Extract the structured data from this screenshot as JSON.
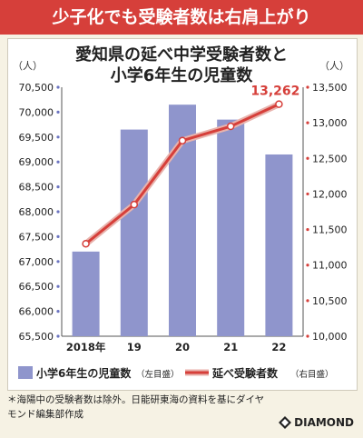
{
  "banner": "少子化でも受験者数は右肩上がり",
  "title_line1": "愛知県の延べ中学受験者数と",
  "title_line2": "小学6年生の児童数",
  "footnote_line1": "＊海陽中の受験者数は除外。日能研東海の資料を基にダイヤ",
  "footnote_line2": "モンド編集部作成",
  "brand": "DIAMOND",
  "colors": {
    "banner": "#d63f3a",
    "bar": "#8f95cc",
    "line": "#d63f3a",
    "bg": "#f6f2e4"
  },
  "chart_data": {
    "type": "bar+line",
    "categories": [
      "2018年",
      "19",
      "20",
      "21",
      "22"
    ],
    "left_unit": "（人）",
    "right_unit": "（人）",
    "left_axis": {
      "min": 65500,
      "max": 70500,
      "ticks": [
        "65,500",
        "66,000",
        "66,500",
        "67,000",
        "67,500",
        "68,000",
        "68,500",
        "69,000",
        "69,500",
        "70,000",
        "70,500"
      ]
    },
    "right_axis": {
      "min": 10000,
      "max": 13500,
      "ticks": [
        "10,000",
        "10,500",
        "11,000",
        "11,500",
        "12,000",
        "12,500",
        "13,000",
        "13,500"
      ]
    },
    "series": [
      {
        "name": "小学6年生の児童数",
        "axis_note": "（左目盛）",
        "type": "bar",
        "values": [
          67200,
          69650,
          70150,
          69850,
          69150
        ]
      },
      {
        "name": "延べ受験者数",
        "axis_note": "（右目盛）",
        "type": "line",
        "values": [
          11300,
          11850,
          12750,
          12950,
          13262
        ]
      }
    ],
    "annotation": "13,262"
  }
}
